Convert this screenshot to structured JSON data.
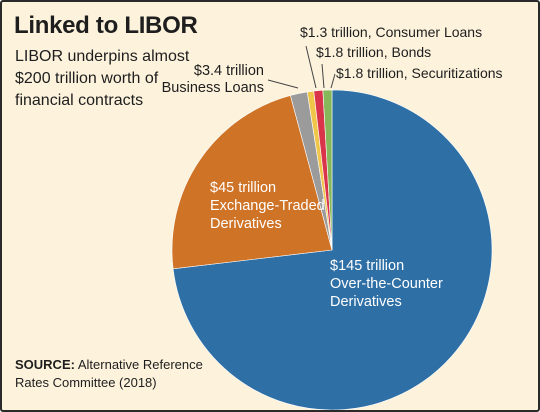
{
  "title": "Linked to LIBOR",
  "subtitle": "LIBOR underpins almost $200 trillion worth of financial contracts",
  "source": {
    "label": "SOURCE:",
    "text": "Alternative Reference Rates Committee (2018)"
  },
  "colors": {
    "background": "#fdf3dd",
    "otc": "#2e6fa6",
    "etd": "#cf7327",
    "business_loans": "#9b9b9b",
    "consumer_loans": "#f0c64a",
    "bonds": "#d9344a",
    "securitizations": "#86b85a"
  },
  "chart_data": {
    "type": "pie",
    "title": "Linked to LIBOR",
    "unit": "trillion USD",
    "start": "12 o'clock",
    "direction": "clockwise",
    "slices": [
      {
        "key": "otc",
        "value": 145,
        "label_lines": [
          "$145 trillion",
          "Over-the-Counter",
          "Derivatives"
        ],
        "label_placement": "inside",
        "label_color": "#ffffff"
      },
      {
        "key": "etd",
        "value": 45,
        "label_lines": [
          "$45 trillion",
          "Exchange-Traded",
          "Derivatives"
        ],
        "label_placement": "inside",
        "label_color": "#ffffff"
      },
      {
        "key": "business_loans",
        "value": 3.4,
        "label_lines": [
          "$3.4 trillion",
          "Business Loans"
        ],
        "label_placement": "outside",
        "label_color": "#1e1e1e"
      },
      {
        "key": "consumer_loans",
        "value": 1.3,
        "label_lines": [
          "$1.3 trillion, Consumer Loans"
        ],
        "label_placement": "outside",
        "label_color": "#1e1e1e"
      },
      {
        "key": "bonds",
        "value": 1.8,
        "label_lines": [
          "$1.8 trillion, Bonds"
        ],
        "label_placement": "outside",
        "label_color": "#1e1e1e"
      },
      {
        "key": "securitizations",
        "value": 1.8,
        "label_lines": [
          "$1.8 trillion, Securitizations"
        ],
        "label_placement": "outside",
        "label_color": "#1e1e1e"
      }
    ]
  }
}
